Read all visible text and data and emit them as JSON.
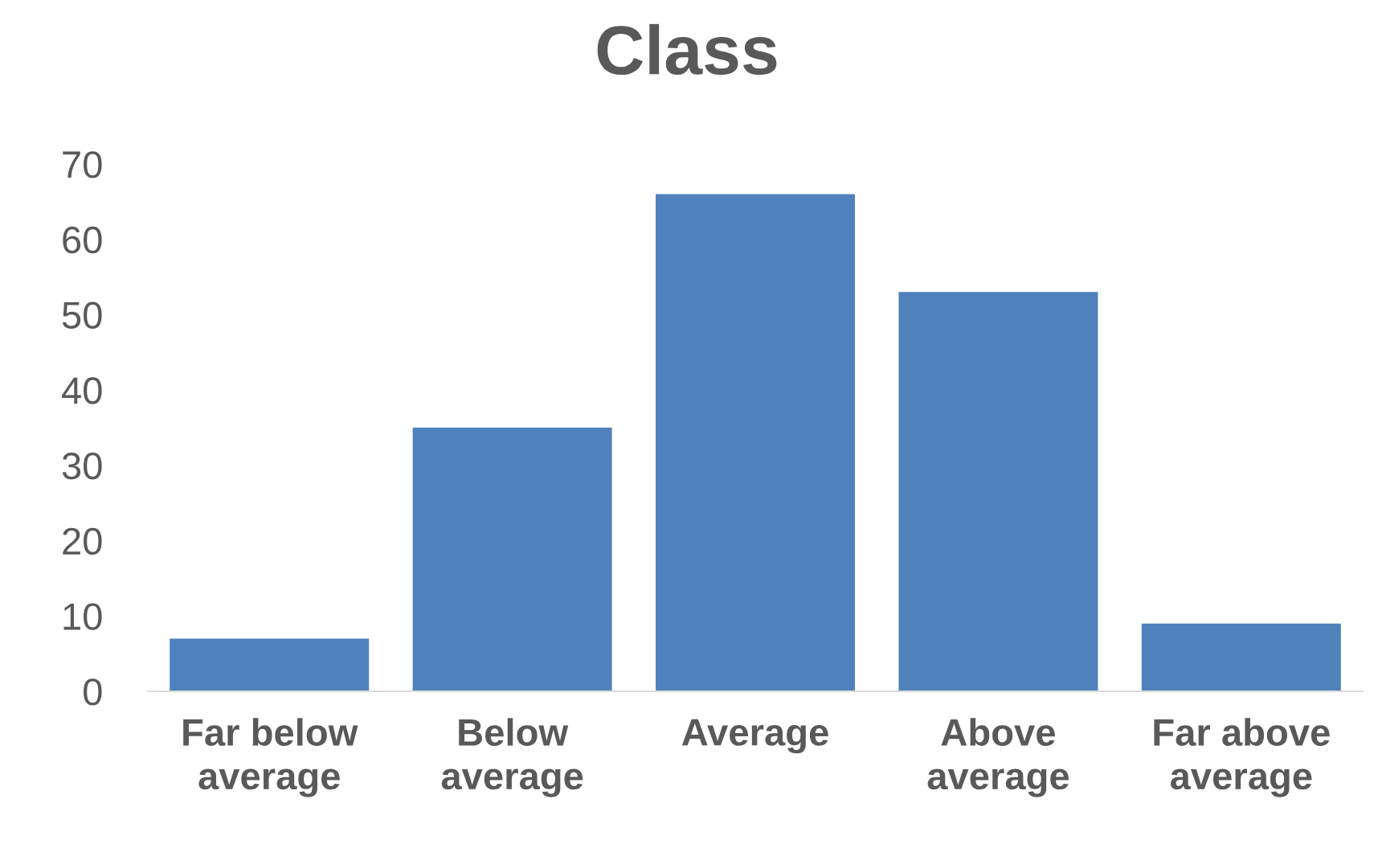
{
  "chart_data": {
    "type": "bar",
    "title": "Class",
    "categories": [
      "Far below\naverage",
      "Below\naverage",
      "Average",
      "Above\naverage",
      "Far above\naverage"
    ],
    "values": [
      7,
      35,
      66,
      53,
      9
    ],
    "color": "#4f81bd",
    "ylim": [
      0,
      70
    ],
    "yticks": [
      0,
      10,
      20,
      30,
      40,
      50,
      60,
      70
    ],
    "grid": false,
    "legend": false
  }
}
